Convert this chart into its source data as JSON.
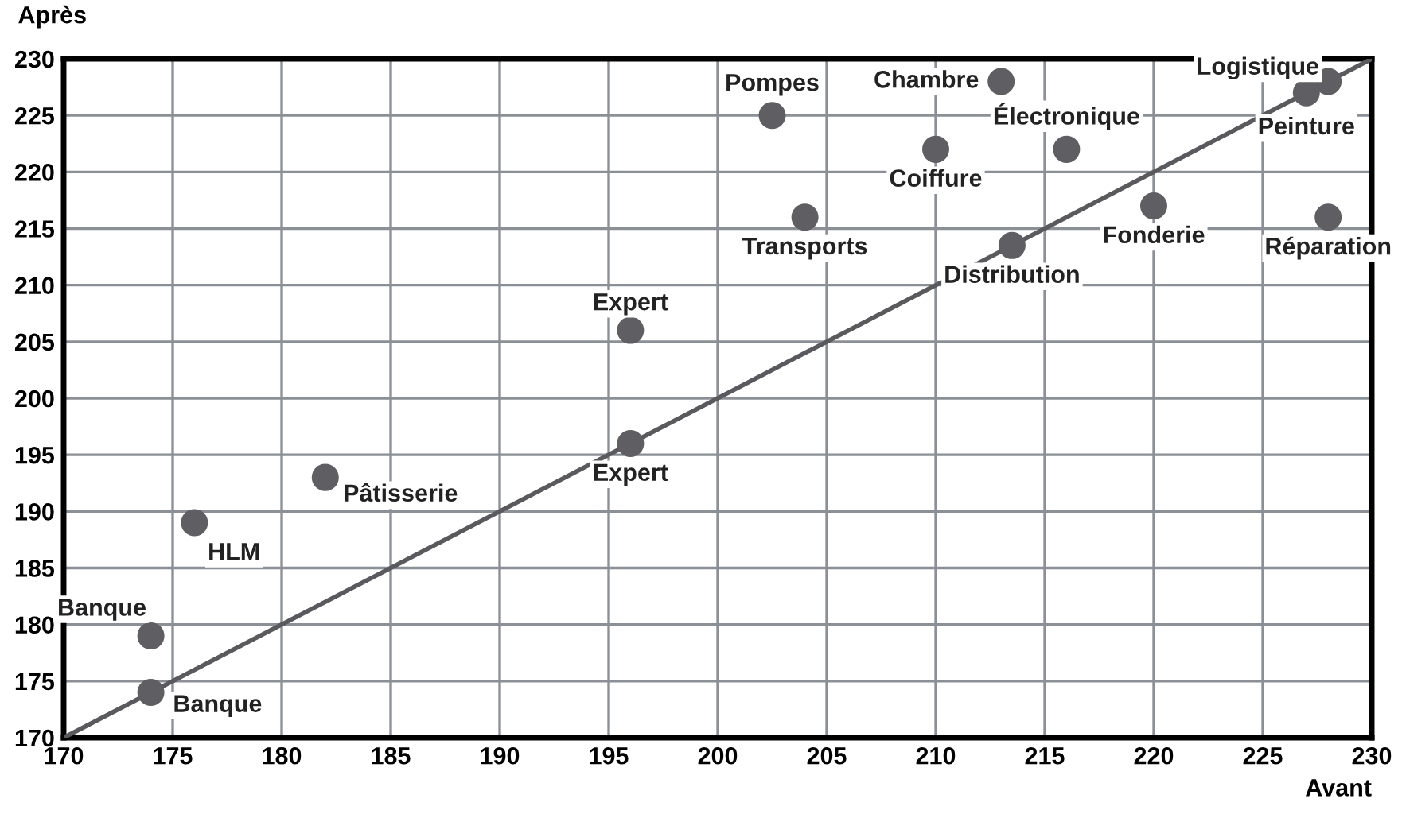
{
  "chart_data": {
    "type": "scatter",
    "xlabel": "Avant",
    "ylabel": "Après",
    "xlim": [
      170,
      230
    ],
    "ylim": [
      170,
      230
    ],
    "xticks": [
      170,
      175,
      180,
      185,
      190,
      195,
      200,
      205,
      210,
      215,
      220,
      225,
      230
    ],
    "yticks": [
      170,
      175,
      180,
      185,
      190,
      195,
      200,
      205,
      210,
      215,
      220,
      225,
      230
    ],
    "grid": true,
    "series": [
      {
        "type": "line",
        "color": "#5a5a5e",
        "x": [
          170,
          230
        ],
        "values": [
          170,
          230
        ]
      },
      {
        "marker": "circle",
        "color": "#5f5f63",
        "x": [
          174,
          174,
          176,
          182,
          196,
          196,
          202.5,
          204,
          210,
          213,
          216,
          213.5,
          220,
          228,
          227,
          228
        ],
        "values": [
          179,
          174,
          189,
          193,
          196,
          206,
          225,
          216,
          222,
          228,
          222,
          213.5,
          217,
          228,
          227,
          216
        ],
        "value_labels": [
          "Banque",
          "Banque",
          "HLM",
          "Pâtisserie",
          "Expert",
          "Expert",
          "Pompes",
          "Transports",
          "Coiffure",
          "Chambre",
          "Électronique",
          "Distribution",
          "Fonderie",
          "Logistique",
          "Peinture",
          "Réparation"
        ]
      }
    ]
  }
}
